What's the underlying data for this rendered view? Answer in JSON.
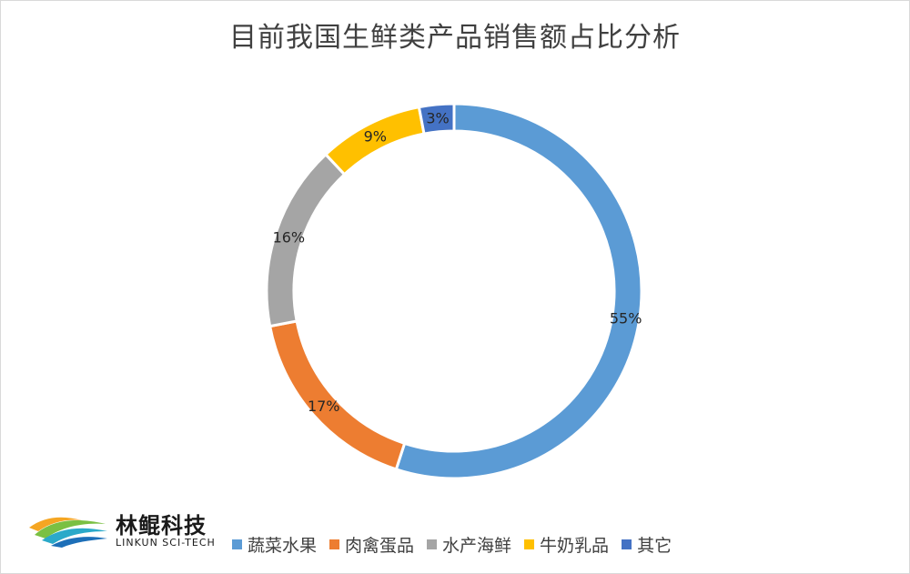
{
  "chart_data": {
    "type": "pie",
    "variant": "donut",
    "title": "目前我国生鲜类产品销售额占比分析",
    "categories": [
      "蔬菜水果",
      "肉禽蛋品",
      "水产海鲜",
      "牛奶乳品",
      "其它"
    ],
    "values": [
      55,
      17,
      16,
      9,
      3
    ],
    "labels": [
      "55%",
      "17%",
      "16%",
      "9%",
      "3%"
    ],
    "unit": "%",
    "colors": [
      "#5b9bd5",
      "#ed7d31",
      "#a5a5a5",
      "#ffc000",
      "#4472c4"
    ],
    "legend": "bottom",
    "start_angle": "top, clockwise"
  },
  "logo": {
    "name": "林鲲科技",
    "subtitle": "LINKUN SCI-TECH"
  }
}
